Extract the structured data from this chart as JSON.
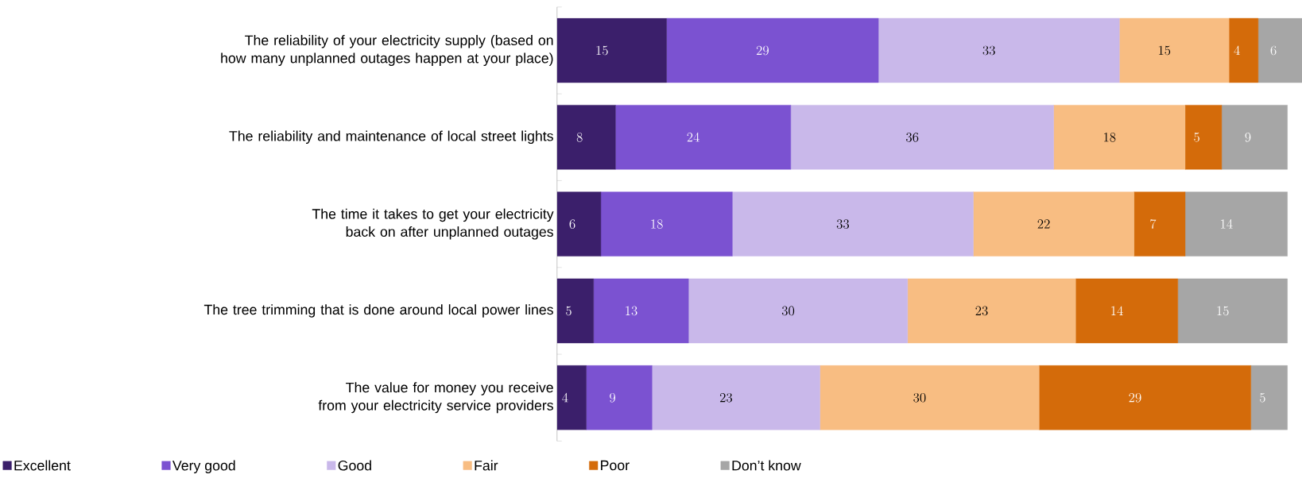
{
  "chart_data": {
    "type": "bar",
    "orientation": "horizontal",
    "stacked": true,
    "data_labels": true,
    "legend": "bottom",
    "categories": [
      "The reliability of your electricity supply (based on how many unplanned outages happen at your place)",
      "The reliability and maintenance of local street lights",
      "The time it takes to get your electricity  back on after unplanned outages",
      "The tree trimming that is done around local power lines",
      "The value for money you receive from your electricity service providers"
    ],
    "series": [
      {
        "name": "Excellent",
        "color": "#3b1f6b",
        "values": [
          15,
          8,
          6,
          5,
          4
        ]
      },
      {
        "name": "Very good",
        "color": "#7b52d1",
        "values": [
          29,
          24,
          18,
          13,
          9
        ]
      },
      {
        "name": "Good",
        "color": "#c9b8ea",
        "values": [
          33,
          36,
          33,
          30,
          23
        ]
      },
      {
        "name": "Fair",
        "color": "#f8bd82",
        "values": [
          15,
          18,
          22,
          23,
          30
        ]
      },
      {
        "name": "Poor",
        "color": "#d46b0a",
        "values": [
          4,
          5,
          7,
          14,
          29
        ]
      },
      {
        "name": "Don’t know",
        "color": "#a6a6a6",
        "values": [
          6,
          9,
          14,
          15,
          5
        ]
      }
    ]
  }
}
